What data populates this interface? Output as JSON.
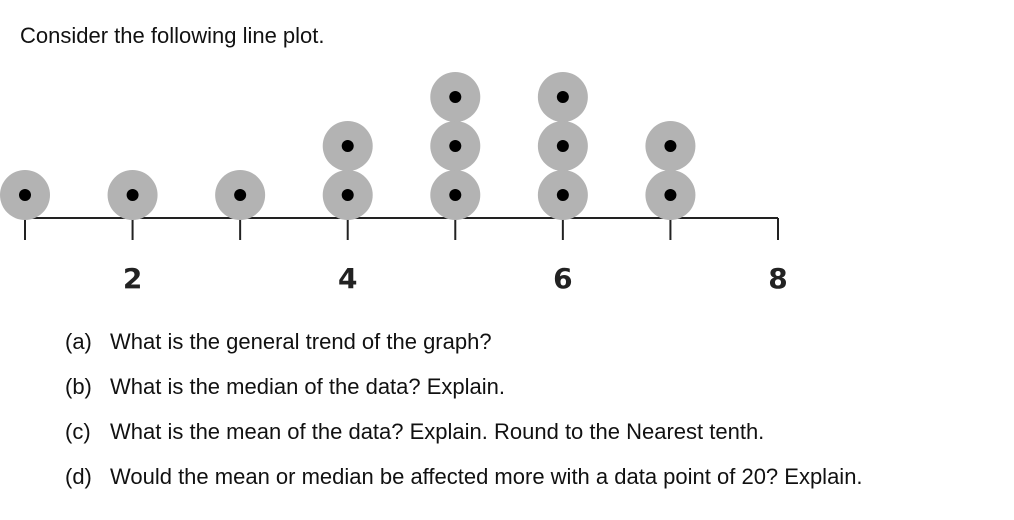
{
  "prompt": "Consider the following line plot.",
  "chart_data": {
    "type": "dot",
    "x": [
      1,
      2,
      3,
      4,
      5,
      6,
      7
    ],
    "values": [
      1,
      1,
      1,
      2,
      3,
      3,
      2
    ],
    "xlim": [
      1,
      8
    ],
    "xticks": [
      2,
      4,
      6,
      8
    ],
    "xminor_ticks": [
      1,
      3,
      5,
      7
    ],
    "color": "#b3b3b3",
    "dot_color": "#000000"
  },
  "questions": [
    {
      "label": "(a)",
      "text": "What is the general trend of the graph?"
    },
    {
      "label": "(b)",
      "text": "What is the median of the data? Explain."
    },
    {
      "label": "(c)",
      "text": "What is the mean of the data? Explain. Round to the Nearest tenth."
    },
    {
      "label": "(d)",
      "text": "Would the mean or median be affected more with a data point of 20? Explain."
    }
  ]
}
